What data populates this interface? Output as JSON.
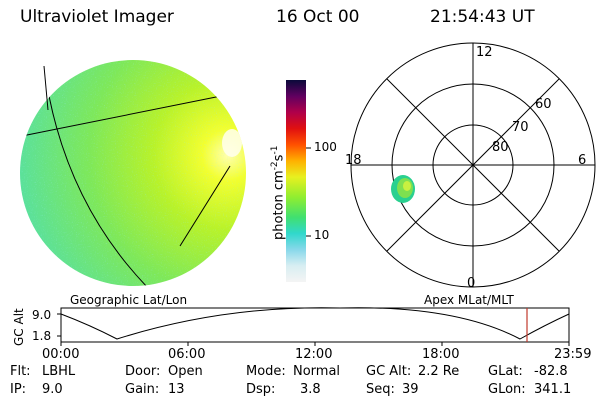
{
  "header": {
    "instrument": "Ultraviolet Imager",
    "date": "16 Oct 00",
    "time": "21:54:43 UT"
  },
  "colorbar": {
    "unit_label": "photon cm",
    "unit_exp1": "-2",
    "unit_mid": "s",
    "unit_exp2": "-1",
    "tick_high": "100",
    "tick_low": "10"
  },
  "polar_plot": {
    "mlt_top": "12",
    "mlt_left": "18",
    "mlt_right": "6",
    "mlt_bottom": "0",
    "lat_60": "60",
    "lat_70": "70",
    "lat_80": "80"
  },
  "timeline": {
    "title_left": "Geographic Lat/Lon",
    "title_right": "Apex MLat/MLT",
    "axis_label": "GC Alt",
    "y_high": "9.0",
    "y_low": "1.8",
    "x_ticks": [
      "00:00",
      "06:00",
      "12:00",
      "18:00",
      "23:59"
    ],
    "marker_color": "#c0392b"
  },
  "info": {
    "flt_label": "Flt:",
    "flt_value": "LBHL",
    "ip_label": "IP:",
    "ip_value": "9.0",
    "door_label": "Door:",
    "door_value": "Open",
    "gain_label": "Gain:",
    "gain_value": "13",
    "mode_label": "Mode:",
    "mode_value": "Normal",
    "dsp_label": "Dsp:",
    "dsp_value": "3.8",
    "gcalt_label": "GC Alt:",
    "gcalt_value": "2.2 Re",
    "seq_label": "Seq:",
    "seq_value": "39",
    "glat_label": "GLat:",
    "glat_value": "-82.8",
    "glon_label": "GLon:",
    "glon_value": "341.1"
  }
}
